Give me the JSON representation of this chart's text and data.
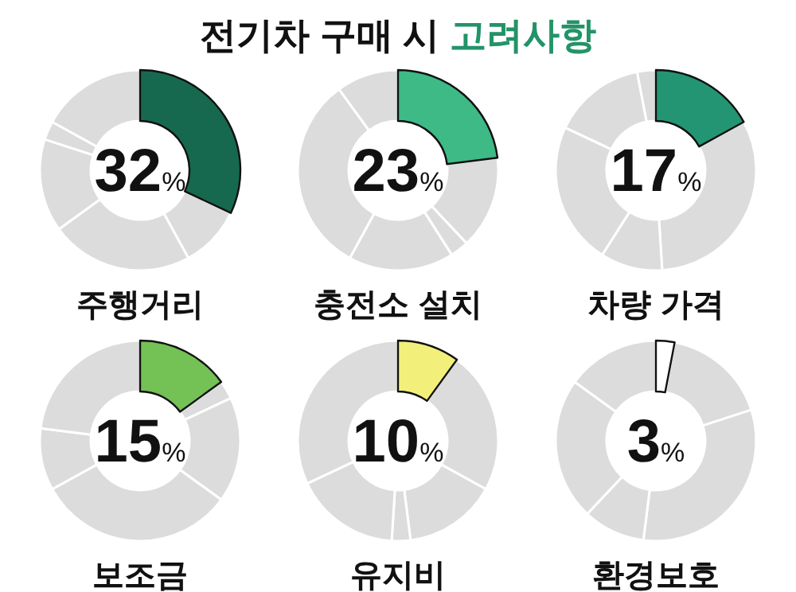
{
  "chart_data": [
    {
      "type": "donut",
      "title": "전기차 구매 시 고려사항",
      "categories": [
        null,
        null,
        null,
        null,
        null,
        null
      ],
      "values": [
        32,
        10,
        23,
        15,
        3,
        17
      ],
      "colors": [
        "#16694f",
        "#dcdcdc",
        "#dcdcdc",
        "#dcdcdc",
        "#dcdcdc",
        "#dcdcdc"
      ],
      "annotations": [
        "32%",
        "주행거리"
      ]
    },
    {
      "type": "donut",
      "categories": [
        null,
        null,
        null,
        null,
        null,
        null
      ],
      "values": [
        23,
        15,
        3,
        17,
        32,
        10
      ],
      "colors": [
        "#3dba86",
        "#dcdcdc",
        "#dcdcdc",
        "#dcdcdc",
        "#dcdcdc",
        "#dcdcdc"
      ],
      "annotations": [
        "23%",
        "충전소 설치"
      ]
    },
    {
      "type": "donut",
      "categories": [
        null,
        null,
        null,
        null,
        null,
        null
      ],
      "values": [
        17,
        32,
        10,
        23,
        15,
        3
      ],
      "colors": [
        "#249572",
        "#dcdcdc",
        "#dcdcdc",
        "#dcdcdc",
        "#dcdcdc",
        "#dcdcdc"
      ],
      "annotations": [
        "17%",
        "차량 가격"
      ]
    },
    {
      "type": "donut",
      "categories": [
        null,
        null,
        null,
        null,
        null,
        null
      ],
      "values": [
        15,
        3,
        17,
        32,
        10,
        23
      ],
      "colors": [
        "#74c156",
        "#dcdcdc",
        "#dcdcdc",
        "#dcdcdc",
        "#dcdcdc",
        "#dcdcdc"
      ],
      "annotations": [
        "15%",
        "보조금"
      ]
    },
    {
      "type": "donut",
      "categories": [
        null,
        null,
        null,
        null,
        null,
        null
      ],
      "values": [
        10,
        23,
        15,
        3,
        17,
        32
      ],
      "colors": [
        "#f2f07a",
        "#dcdcdc",
        "#dcdcdc",
        "#dcdcdc",
        "#dcdcdc",
        "#dcdcdc"
      ],
      "annotations": [
        "10%",
        "유지비"
      ]
    },
    {
      "type": "donut",
      "categories": [
        null,
        null,
        null,
        null,
        null,
        null
      ],
      "values": [
        3,
        17,
        32,
        10,
        23,
        15
      ],
      "colors": [
        "#ffffff",
        "#dcdcdc",
        "#dcdcdc",
        "#dcdcdc",
        "#dcdcdc",
        "#dcdcdc"
      ],
      "annotations": [
        "3%",
        "환경보호"
      ]
    }
  ]
}
